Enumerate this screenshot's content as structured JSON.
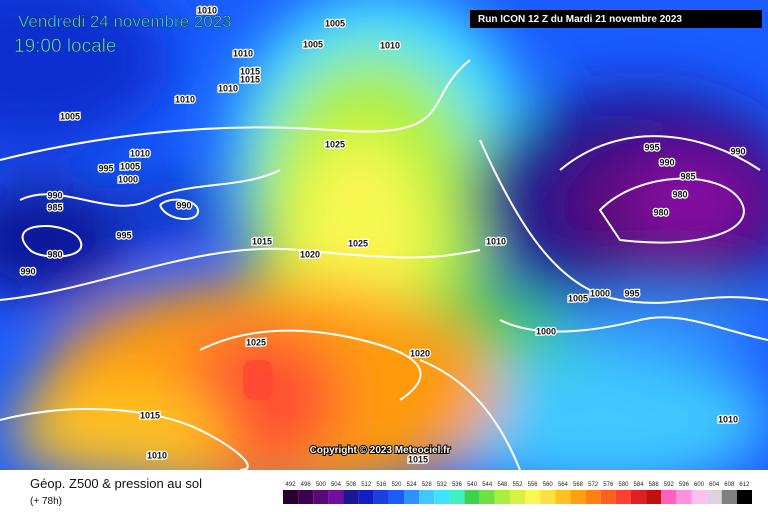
{
  "header": {
    "date": "Vendredi 24 novembre 2023",
    "time": "19:00 locale",
    "run": "Run ICON 12 Z du Mardi 21 novembre 2023"
  },
  "copyright": "Copyright © 2023 Meteociel.fr",
  "footer": {
    "title": "Géop. Z500 & pression au sol",
    "subtitle": "(+ 78h)"
  },
  "isobar_labels": [
    "1005",
    "1010",
    "1005",
    "1010",
    "1010",
    "1015",
    "1015",
    "1010",
    "1010",
    "1005",
    "1010",
    "1005",
    "995",
    "1000",
    "1025",
    "990",
    "985",
    "990",
    "995",
    "980",
    "990",
    "1015",
    "1020",
    "1025",
    "1010",
    "995",
    "990",
    "990",
    "985",
    "980",
    "980",
    "1005",
    "1000",
    "995",
    "1000",
    "1025",
    "1020",
    "1015",
    "1010",
    "1015",
    "1010"
  ],
  "scale": {
    "labels": [
      492,
      496,
      500,
      504,
      508,
      512,
      516,
      520,
      524,
      528,
      532,
      536,
      540,
      544,
      548,
      552,
      556,
      560,
      564,
      568,
      572,
      576,
      580,
      584,
      588,
      592,
      596,
      600,
      604,
      608,
      612
    ]
  }
}
